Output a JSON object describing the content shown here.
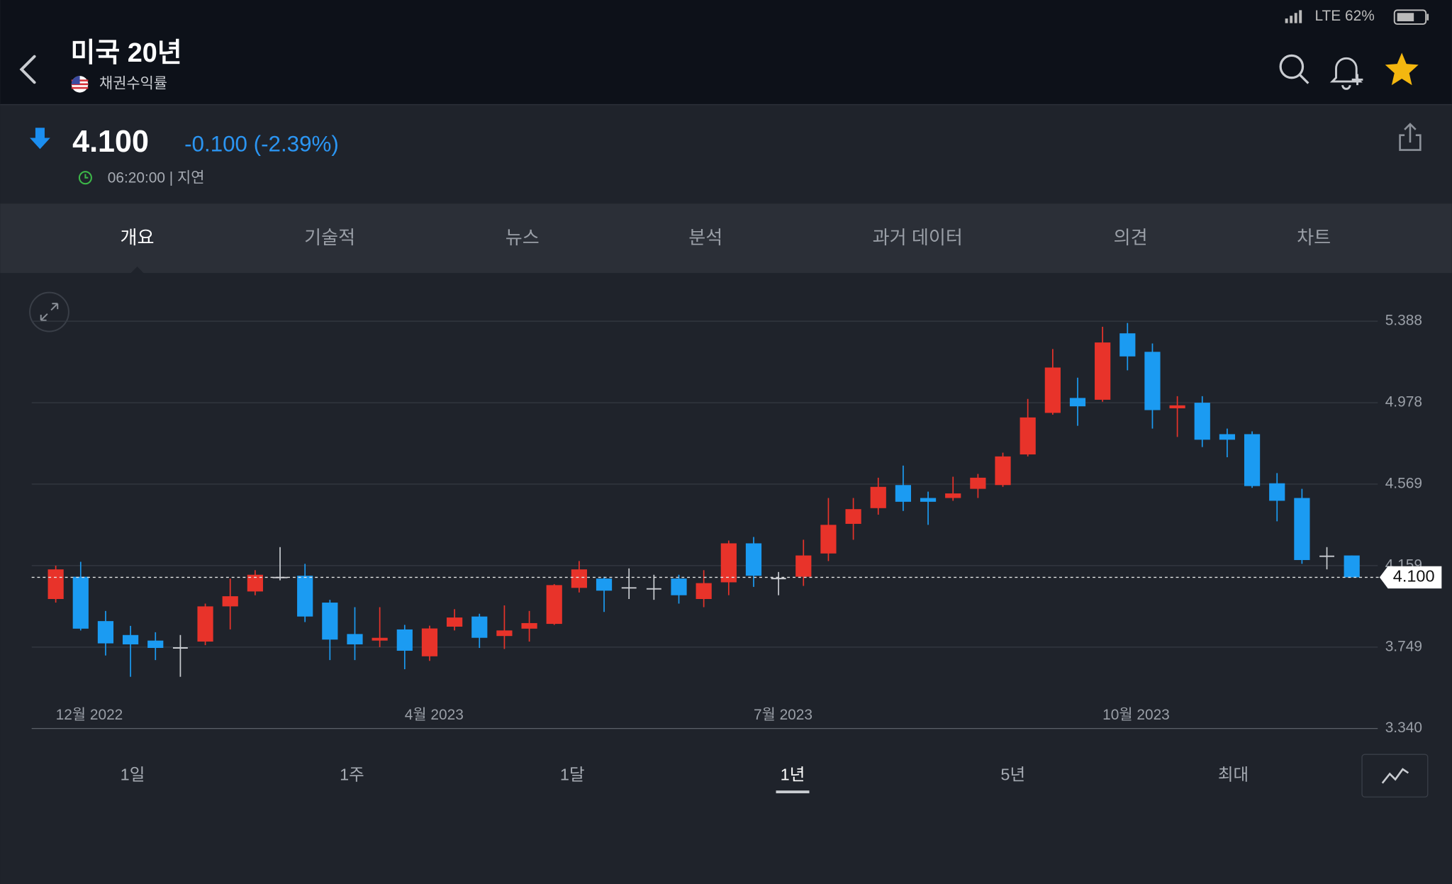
{
  "status_bar": {
    "text": "LTE 62%"
  },
  "header": {
    "title": "미국 20년",
    "subtitle": "채권수익률"
  },
  "quote": {
    "price": "4.100",
    "change": "-0.100 (-2.39%)",
    "time": "06:20:00 | 지연"
  },
  "tabs": [
    "개요",
    "기술적",
    "뉴스",
    "분석",
    "과거 데이터",
    "의견",
    "차트"
  ],
  "active_tab": 0,
  "ranges": [
    "1일",
    "1주",
    "1달",
    "1년",
    "5년",
    "최대"
  ],
  "active_range": 3,
  "chart_data": {
    "type": "candlestick",
    "categories": [
      "12월 2022",
      null,
      null,
      null,
      null,
      null,
      null,
      null,
      null,
      null,
      null,
      null,
      null,
      null,
      "4월 2023",
      null,
      null,
      null,
      null,
      null,
      null,
      null,
      null,
      null,
      null,
      null,
      null,
      null,
      "7월 2023",
      null,
      null,
      null,
      null,
      null,
      null,
      null,
      null,
      null,
      null,
      null,
      null,
      null,
      "10월 2023",
      null,
      null,
      null,
      null,
      null,
      null,
      null,
      null,
      null,
      null
    ],
    "open": [
      3.991,
      4.103,
      3.88,
      3.81,
      3.782,
      3.745,
      3.777,
      3.954,
      4.029,
      4.099,
      4.108,
      3.973,
      3.815,
      3.782,
      3.838,
      3.703,
      3.852,
      3.903,
      3.805,
      3.842,
      3.866,
      4.047,
      4.094,
      4.047,
      4.042,
      4.094,
      3.991,
      4.075,
      4.271,
      4.094,
      4.103,
      4.22,
      4.369,
      4.448,
      4.564,
      4.499,
      4.499,
      4.545,
      4.564,
      4.718,
      4.927,
      5.002,
      4.993,
      5.327,
      5.234,
      4.95,
      4.978,
      4.82,
      4.82,
      4.573,
      4.499,
      4.206,
      4.21
    ],
    "high": [
      4.159,
      4.178,
      3.931,
      3.856,
      3.824,
      3.81,
      3.968,
      4.094,
      4.136,
      4.252,
      4.168,
      3.987,
      3.95,
      3.95,
      3.861,
      3.857,
      3.94,
      3.917,
      3.959,
      3.931,
      4.066,
      4.182,
      4.103,
      4.145,
      4.113,
      4.113,
      4.136,
      4.285,
      4.303,
      4.127,
      4.289,
      4.499,
      4.499,
      4.601,
      4.662,
      4.531,
      4.606,
      4.62,
      4.727,
      4.997,
      5.248,
      5.104,
      5.36,
      5.379,
      5.276,
      5.011,
      5.011,
      4.848,
      4.834,
      4.624,
      4.545,
      4.252,
      4.21
    ],
    "low": [
      3.973,
      3.833,
      3.707,
      3.6,
      3.684,
      3.6,
      3.759,
      3.838,
      4.01,
      4.085,
      3.875,
      3.684,
      3.684,
      3.749,
      3.638,
      3.68,
      3.833,
      3.745,
      3.74,
      3.777,
      3.861,
      4.024,
      3.926,
      3.991,
      3.987,
      3.968,
      3.95,
      4.01,
      4.052,
      4.01,
      4.057,
      4.182,
      4.289,
      4.415,
      4.434,
      4.364,
      4.485,
      4.499,
      4.555,
      4.708,
      4.918,
      4.862,
      4.983,
      5.141,
      4.848,
      4.806,
      4.755,
      4.704,
      4.55,
      4.382,
      4.168,
      4.14,
      4.1
    ],
    "close": [
      4.14,
      3.842,
      3.768,
      3.763,
      3.745,
      3.745,
      3.954,
      4.005,
      4.113,
      4.099,
      3.903,
      3.787,
      3.763,
      3.796,
      3.731,
      3.843,
      3.898,
      3.796,
      3.833,
      3.87,
      4.061,
      4.14,
      4.033,
      4.047,
      4.042,
      4.01,
      4.071,
      4.271,
      4.108,
      4.094,
      4.21,
      4.364,
      4.443,
      4.555,
      4.48,
      4.48,
      4.522,
      4.601,
      4.708,
      4.904,
      5.155,
      4.96,
      5.281,
      5.211,
      4.941,
      4.965,
      4.792,
      4.792,
      4.559,
      4.485,
      4.187,
      4.206,
      4.1
    ],
    "up_color": "#e8332a",
    "down_color": "#1b9bf2",
    "flat_color": "#c9ccd1",
    "ylim": [
      3.34,
      5.388
    ],
    "yticks": [
      {
        "value": 3.34,
        "label": "3.340"
      },
      3.749,
      4.159,
      4.569,
      4.978,
      5.388
    ],
    "grid": true,
    "last_price": {
      "value": 4.1,
      "label": "4.100"
    }
  }
}
